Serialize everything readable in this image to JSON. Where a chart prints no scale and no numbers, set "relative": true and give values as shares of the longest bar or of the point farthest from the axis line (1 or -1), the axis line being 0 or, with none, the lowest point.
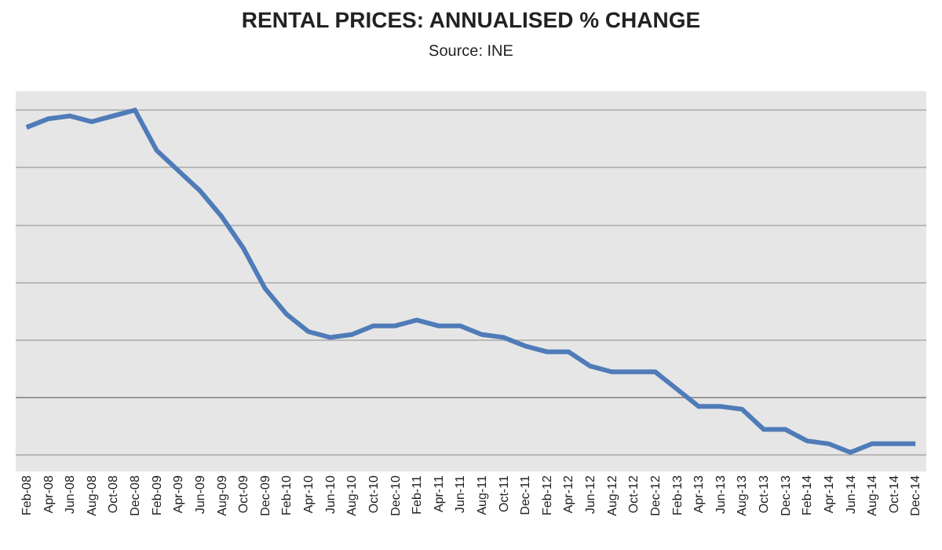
{
  "chart_data": {
    "type": "line",
    "title": "RENTAL PRICES: ANNUALISED % CHANGE",
    "subtitle": "Source: INE",
    "relative": true,
    "grid": "y",
    "marker": "none",
    "line_style": "solid",
    "categories": [
      "Feb-08",
      "Apr-08",
      "Jun-08",
      "Aug-08",
      "Oct-08",
      "Dec-08",
      "Feb-09",
      "Apr-09",
      "Jun-09",
      "Aug-09",
      "Oct-09",
      "Dec-09",
      "Feb-10",
      "Apr-10",
      "Jun-10",
      "Aug-10",
      "Oct-10",
      "Dec-10",
      "Feb-11",
      "Apr-11",
      "Jun-11",
      "Aug-11",
      "Oct-11",
      "Dec-11",
      "Feb-12",
      "Apr-12",
      "Jun-12",
      "Aug-12",
      "Oct-12",
      "Dec-12",
      "Feb-13",
      "Apr-13",
      "Jun-13",
      "Aug-13",
      "Oct-13",
      "Dec-13",
      "Feb-14",
      "Apr-14",
      "Jun-14",
      "Aug-14",
      "Oct-14",
      "Dec-14"
    ],
    "series": [
      {
        "color": "#4f7cb8",
        "values": [
          0.94,
          0.97,
          0.98,
          0.96,
          0.98,
          1,
          0.86,
          0.79,
          0.72,
          0.63,
          0.52,
          0.38,
          0.29,
          0.23,
          0.21,
          0.22,
          0.25,
          0.25,
          0.27,
          0.25,
          0.25,
          0.22,
          0.21,
          0.18,
          0.16,
          0.16,
          0.11,
          0.09,
          0.09,
          0.09,
          0.03,
          -0.03,
          -0.03,
          -0.04,
          -0.11,
          -0.11,
          -0.15,
          -0.16,
          -0.19,
          -0.16,
          -0.16,
          -0.16
        ]
      }
    ]
  }
}
